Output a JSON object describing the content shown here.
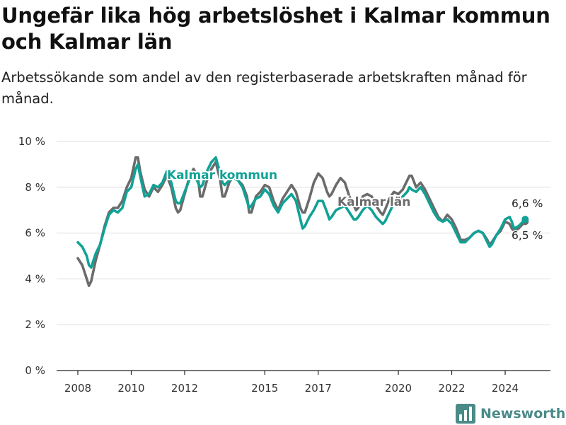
{
  "header": {
    "title": "Ungefär lika hög arbetslöshet i Kalmar kommun och Kalmar län",
    "subtitle": "Arbetssökande som andel av den registerbaserade arbetskraften månad för månad."
  },
  "brand": {
    "name": "Newsworthy",
    "color": "#4a8a88",
    "icon": "bar-chart-logo-icon"
  },
  "chart_data": {
    "type": "line",
    "title": "",
    "xlabel": "",
    "ylabel": "",
    "ylim": [
      0,
      10
    ],
    "y_ticks": [
      "0 %",
      "2 %",
      "4 %",
      "6 %",
      "8 %",
      "10 %"
    ],
    "x_ticks": [
      "2008",
      "2010",
      "2012",
      "2015",
      "2017",
      "2020",
      "2022",
      "2024"
    ],
    "grid": "horizontal",
    "legend": "inline labels",
    "series": [
      {
        "name": "Kalmar län",
        "color": "#6b6b6b",
        "end_label": "6,5 %",
        "points": [
          [
            "2008-01",
            4.9
          ],
          [
            "2008-03",
            4.6
          ],
          [
            "2008-05",
            4.0
          ],
          [
            "2008-06",
            3.7
          ],
          [
            "2008-07",
            3.9
          ],
          [
            "2008-09",
            4.8
          ],
          [
            "2008-11",
            5.5
          ],
          [
            "2009-01",
            6.3
          ],
          [
            "2009-03",
            6.9
          ],
          [
            "2009-05",
            7.1
          ],
          [
            "2009-07",
            7.1
          ],
          [
            "2009-09",
            7.4
          ],
          [
            "2009-11",
            8.0
          ],
          [
            "2010-01",
            8.4
          ],
          [
            "2010-03",
            9.3
          ],
          [
            "2010-04",
            9.3
          ],
          [
            "2010-05",
            8.7
          ],
          [
            "2010-07",
            7.9
          ],
          [
            "2010-09",
            7.6
          ],
          [
            "2010-11",
            8.0
          ],
          [
            "2011-01",
            7.8
          ],
          [
            "2011-03",
            8.1
          ],
          [
            "2011-05",
            8.5
          ],
          [
            "2011-07",
            8.0
          ],
          [
            "2011-09",
            7.1
          ],
          [
            "2011-10",
            6.9
          ],
          [
            "2011-11",
            7.0
          ],
          [
            "2012-01",
            7.7
          ],
          [
            "2012-03",
            8.4
          ],
          [
            "2012-05",
            8.8
          ],
          [
            "2012-07",
            8.4
          ],
          [
            "2012-08",
            7.6
          ],
          [
            "2012-09",
            7.6
          ],
          [
            "2012-11",
            8.3
          ],
          [
            "2013-01",
            8.8
          ],
          [
            "2013-03",
            9.1
          ],
          [
            "2013-05",
            8.3
          ],
          [
            "2013-06",
            7.6
          ],
          [
            "2013-07",
            7.6
          ],
          [
            "2013-09",
            8.2
          ],
          [
            "2013-11",
            8.5
          ],
          [
            "2014-01",
            8.3
          ],
          [
            "2014-03",
            8.1
          ],
          [
            "2014-05",
            7.6
          ],
          [
            "2014-06",
            6.9
          ],
          [
            "2014-07",
            6.9
          ],
          [
            "2014-09",
            7.6
          ],
          [
            "2014-11",
            7.8
          ],
          [
            "2015-01",
            8.1
          ],
          [
            "2015-03",
            8.0
          ],
          [
            "2015-05",
            7.4
          ],
          [
            "2015-07",
            7.0
          ],
          [
            "2015-09",
            7.5
          ],
          [
            "2015-11",
            7.8
          ],
          [
            "2016-01",
            8.1
          ],
          [
            "2016-03",
            7.8
          ],
          [
            "2016-05",
            7.1
          ],
          [
            "2016-06",
            6.9
          ],
          [
            "2016-07",
            6.9
          ],
          [
            "2016-09",
            7.5
          ],
          [
            "2016-11",
            8.2
          ],
          [
            "2017-01",
            8.6
          ],
          [
            "2017-03",
            8.4
          ],
          [
            "2017-05",
            7.8
          ],
          [
            "2017-06",
            7.6
          ],
          [
            "2017-07",
            7.7
          ],
          [
            "2017-09",
            8.1
          ],
          [
            "2017-11",
            8.4
          ],
          [
            "2018-01",
            8.2
          ],
          [
            "2018-03",
            7.6
          ],
          [
            "2018-05",
            7.2
          ],
          [
            "2018-06",
            7.0
          ],
          [
            "2018-07",
            7.1
          ],
          [
            "2018-09",
            7.6
          ],
          [
            "2018-11",
            7.7
          ],
          [
            "2019-01",
            7.6
          ],
          [
            "2019-03",
            7.2
          ],
          [
            "2019-05",
            6.9
          ],
          [
            "2019-06",
            6.8
          ],
          [
            "2019-07",
            7.0
          ],
          [
            "2019-09",
            7.5
          ],
          [
            "2019-11",
            7.8
          ],
          [
            "2020-01",
            7.7
          ],
          [
            "2020-03",
            7.9
          ],
          [
            "2020-05",
            8.3
          ],
          [
            "2020-06",
            8.5
          ],
          [
            "2020-07",
            8.5
          ],
          [
            "2020-09",
            8.0
          ],
          [
            "2020-11",
            8.2
          ],
          [
            "2021-01",
            7.9
          ],
          [
            "2021-03",
            7.5
          ],
          [
            "2021-05",
            7.1
          ],
          [
            "2021-07",
            6.7
          ],
          [
            "2021-09",
            6.5
          ],
          [
            "2021-11",
            6.8
          ],
          [
            "2022-01",
            6.6
          ],
          [
            "2022-03",
            6.2
          ],
          [
            "2022-05",
            5.7
          ],
          [
            "2022-07",
            5.7
          ],
          [
            "2022-09",
            5.8
          ],
          [
            "2022-11",
            6.0
          ],
          [
            "2023-01",
            6.1
          ],
          [
            "2023-03",
            6.0
          ],
          [
            "2023-05",
            5.7
          ],
          [
            "2023-06",
            5.5
          ],
          [
            "2023-07",
            5.6
          ],
          [
            "2023-09",
            5.9
          ],
          [
            "2023-11",
            6.1
          ],
          [
            "2024-01",
            6.5
          ],
          [
            "2024-03",
            6.4
          ],
          [
            "2024-04",
            6.2
          ],
          [
            "2024-05",
            6.1
          ],
          [
            "2024-07",
            6.2
          ],
          [
            "2024-09",
            6.4
          ],
          [
            "2024-10",
            6.5
          ]
        ]
      },
      {
        "name": "Kalmar kommun",
        "color": "#10a296",
        "end_label": "6,6 %",
        "points": [
          [
            "2008-01",
            5.6
          ],
          [
            "2008-03",
            5.4
          ],
          [
            "2008-05",
            5.0
          ],
          [
            "2008-06",
            4.6
          ],
          [
            "2008-07",
            4.5
          ],
          [
            "2008-09",
            5.1
          ],
          [
            "2008-11",
            5.5
          ],
          [
            "2009-01",
            6.2
          ],
          [
            "2009-03",
            6.8
          ],
          [
            "2009-05",
            7.0
          ],
          [
            "2009-07",
            6.9
          ],
          [
            "2009-09",
            7.1
          ],
          [
            "2009-11",
            7.8
          ],
          [
            "2010-01",
            8.0
          ],
          [
            "2010-03",
            8.8
          ],
          [
            "2010-04",
            9.0
          ],
          [
            "2010-05",
            8.5
          ],
          [
            "2010-07",
            7.6
          ],
          [
            "2010-09",
            7.7
          ],
          [
            "2010-11",
            8.1
          ],
          [
            "2011-01",
            8.0
          ],
          [
            "2011-03",
            8.2
          ],
          [
            "2011-05",
            8.7
          ],
          [
            "2011-07",
            8.2
          ],
          [
            "2011-09",
            7.4
          ],
          [
            "2011-10",
            7.3
          ],
          [
            "2011-11",
            7.3
          ],
          [
            "2012-01",
            7.8
          ],
          [
            "2012-03",
            8.3
          ],
          [
            "2012-05",
            8.6
          ],
          [
            "2012-07",
            8.2
          ],
          [
            "2012-08",
            8.0
          ],
          [
            "2012-09",
            8.1
          ],
          [
            "2012-11",
            8.7
          ],
          [
            "2013-01",
            9.1
          ],
          [
            "2013-03",
            9.3
          ],
          [
            "2013-05",
            8.6
          ],
          [
            "2013-06",
            8.2
          ],
          [
            "2013-07",
            8.1
          ],
          [
            "2013-09",
            8.3
          ],
          [
            "2013-11",
            8.4
          ],
          [
            "2014-01",
            8.3
          ],
          [
            "2014-03",
            8.0
          ],
          [
            "2014-05",
            7.4
          ],
          [
            "2014-06",
            7.1
          ],
          [
            "2014-07",
            7.2
          ],
          [
            "2014-09",
            7.5
          ],
          [
            "2014-11",
            7.6
          ],
          [
            "2015-01",
            7.9
          ],
          [
            "2015-03",
            7.7
          ],
          [
            "2015-05",
            7.2
          ],
          [
            "2015-07",
            6.9
          ],
          [
            "2015-09",
            7.3
          ],
          [
            "2015-11",
            7.5
          ],
          [
            "2016-01",
            7.7
          ],
          [
            "2016-03",
            7.4
          ],
          [
            "2016-05",
            6.6
          ],
          [
            "2016-06",
            6.2
          ],
          [
            "2016-07",
            6.3
          ],
          [
            "2016-09",
            6.7
          ],
          [
            "2016-11",
            7.0
          ],
          [
            "2017-01",
            7.4
          ],
          [
            "2017-03",
            7.4
          ],
          [
            "2017-05",
            6.9
          ],
          [
            "2017-06",
            6.6
          ],
          [
            "2017-07",
            6.7
          ],
          [
            "2017-09",
            7.0
          ],
          [
            "2017-11",
            7.1
          ],
          [
            "2018-01",
            7.2
          ],
          [
            "2018-03",
            6.9
          ],
          [
            "2018-05",
            6.6
          ],
          [
            "2018-06",
            6.6
          ],
          [
            "2018-07",
            6.7
          ],
          [
            "2018-09",
            7.0
          ],
          [
            "2018-11",
            7.2
          ],
          [
            "2019-01",
            7.0
          ],
          [
            "2019-03",
            6.7
          ],
          [
            "2019-05",
            6.5
          ],
          [
            "2019-06",
            6.4
          ],
          [
            "2019-07",
            6.5
          ],
          [
            "2019-09",
            6.9
          ],
          [
            "2019-11",
            7.3
          ],
          [
            "2020-01",
            7.4
          ],
          [
            "2020-03",
            7.6
          ],
          [
            "2020-05",
            7.8
          ],
          [
            "2020-06",
            8.0
          ],
          [
            "2020-07",
            7.9
          ],
          [
            "2020-09",
            7.8
          ],
          [
            "2020-11",
            8.0
          ],
          [
            "2021-01",
            7.7
          ],
          [
            "2021-03",
            7.3
          ],
          [
            "2021-05",
            6.9
          ],
          [
            "2021-07",
            6.6
          ],
          [
            "2021-09",
            6.5
          ],
          [
            "2021-11",
            6.6
          ],
          [
            "2022-01",
            6.4
          ],
          [
            "2022-03",
            6.0
          ],
          [
            "2022-05",
            5.6
          ],
          [
            "2022-07",
            5.6
          ],
          [
            "2022-09",
            5.8
          ],
          [
            "2022-11",
            6.0
          ],
          [
            "2023-01",
            6.1
          ],
          [
            "2023-03",
            6.0
          ],
          [
            "2023-05",
            5.6
          ],
          [
            "2023-06",
            5.4
          ],
          [
            "2023-07",
            5.5
          ],
          [
            "2023-09",
            5.9
          ],
          [
            "2023-11",
            6.2
          ],
          [
            "2024-01",
            6.6
          ],
          [
            "2024-03",
            6.7
          ],
          [
            "2024-04",
            6.5
          ],
          [
            "2024-05",
            6.2
          ],
          [
            "2024-07",
            6.3
          ],
          [
            "2024-09",
            6.5
          ],
          [
            "2024-10",
            6.6
          ]
        ]
      }
    ]
  }
}
